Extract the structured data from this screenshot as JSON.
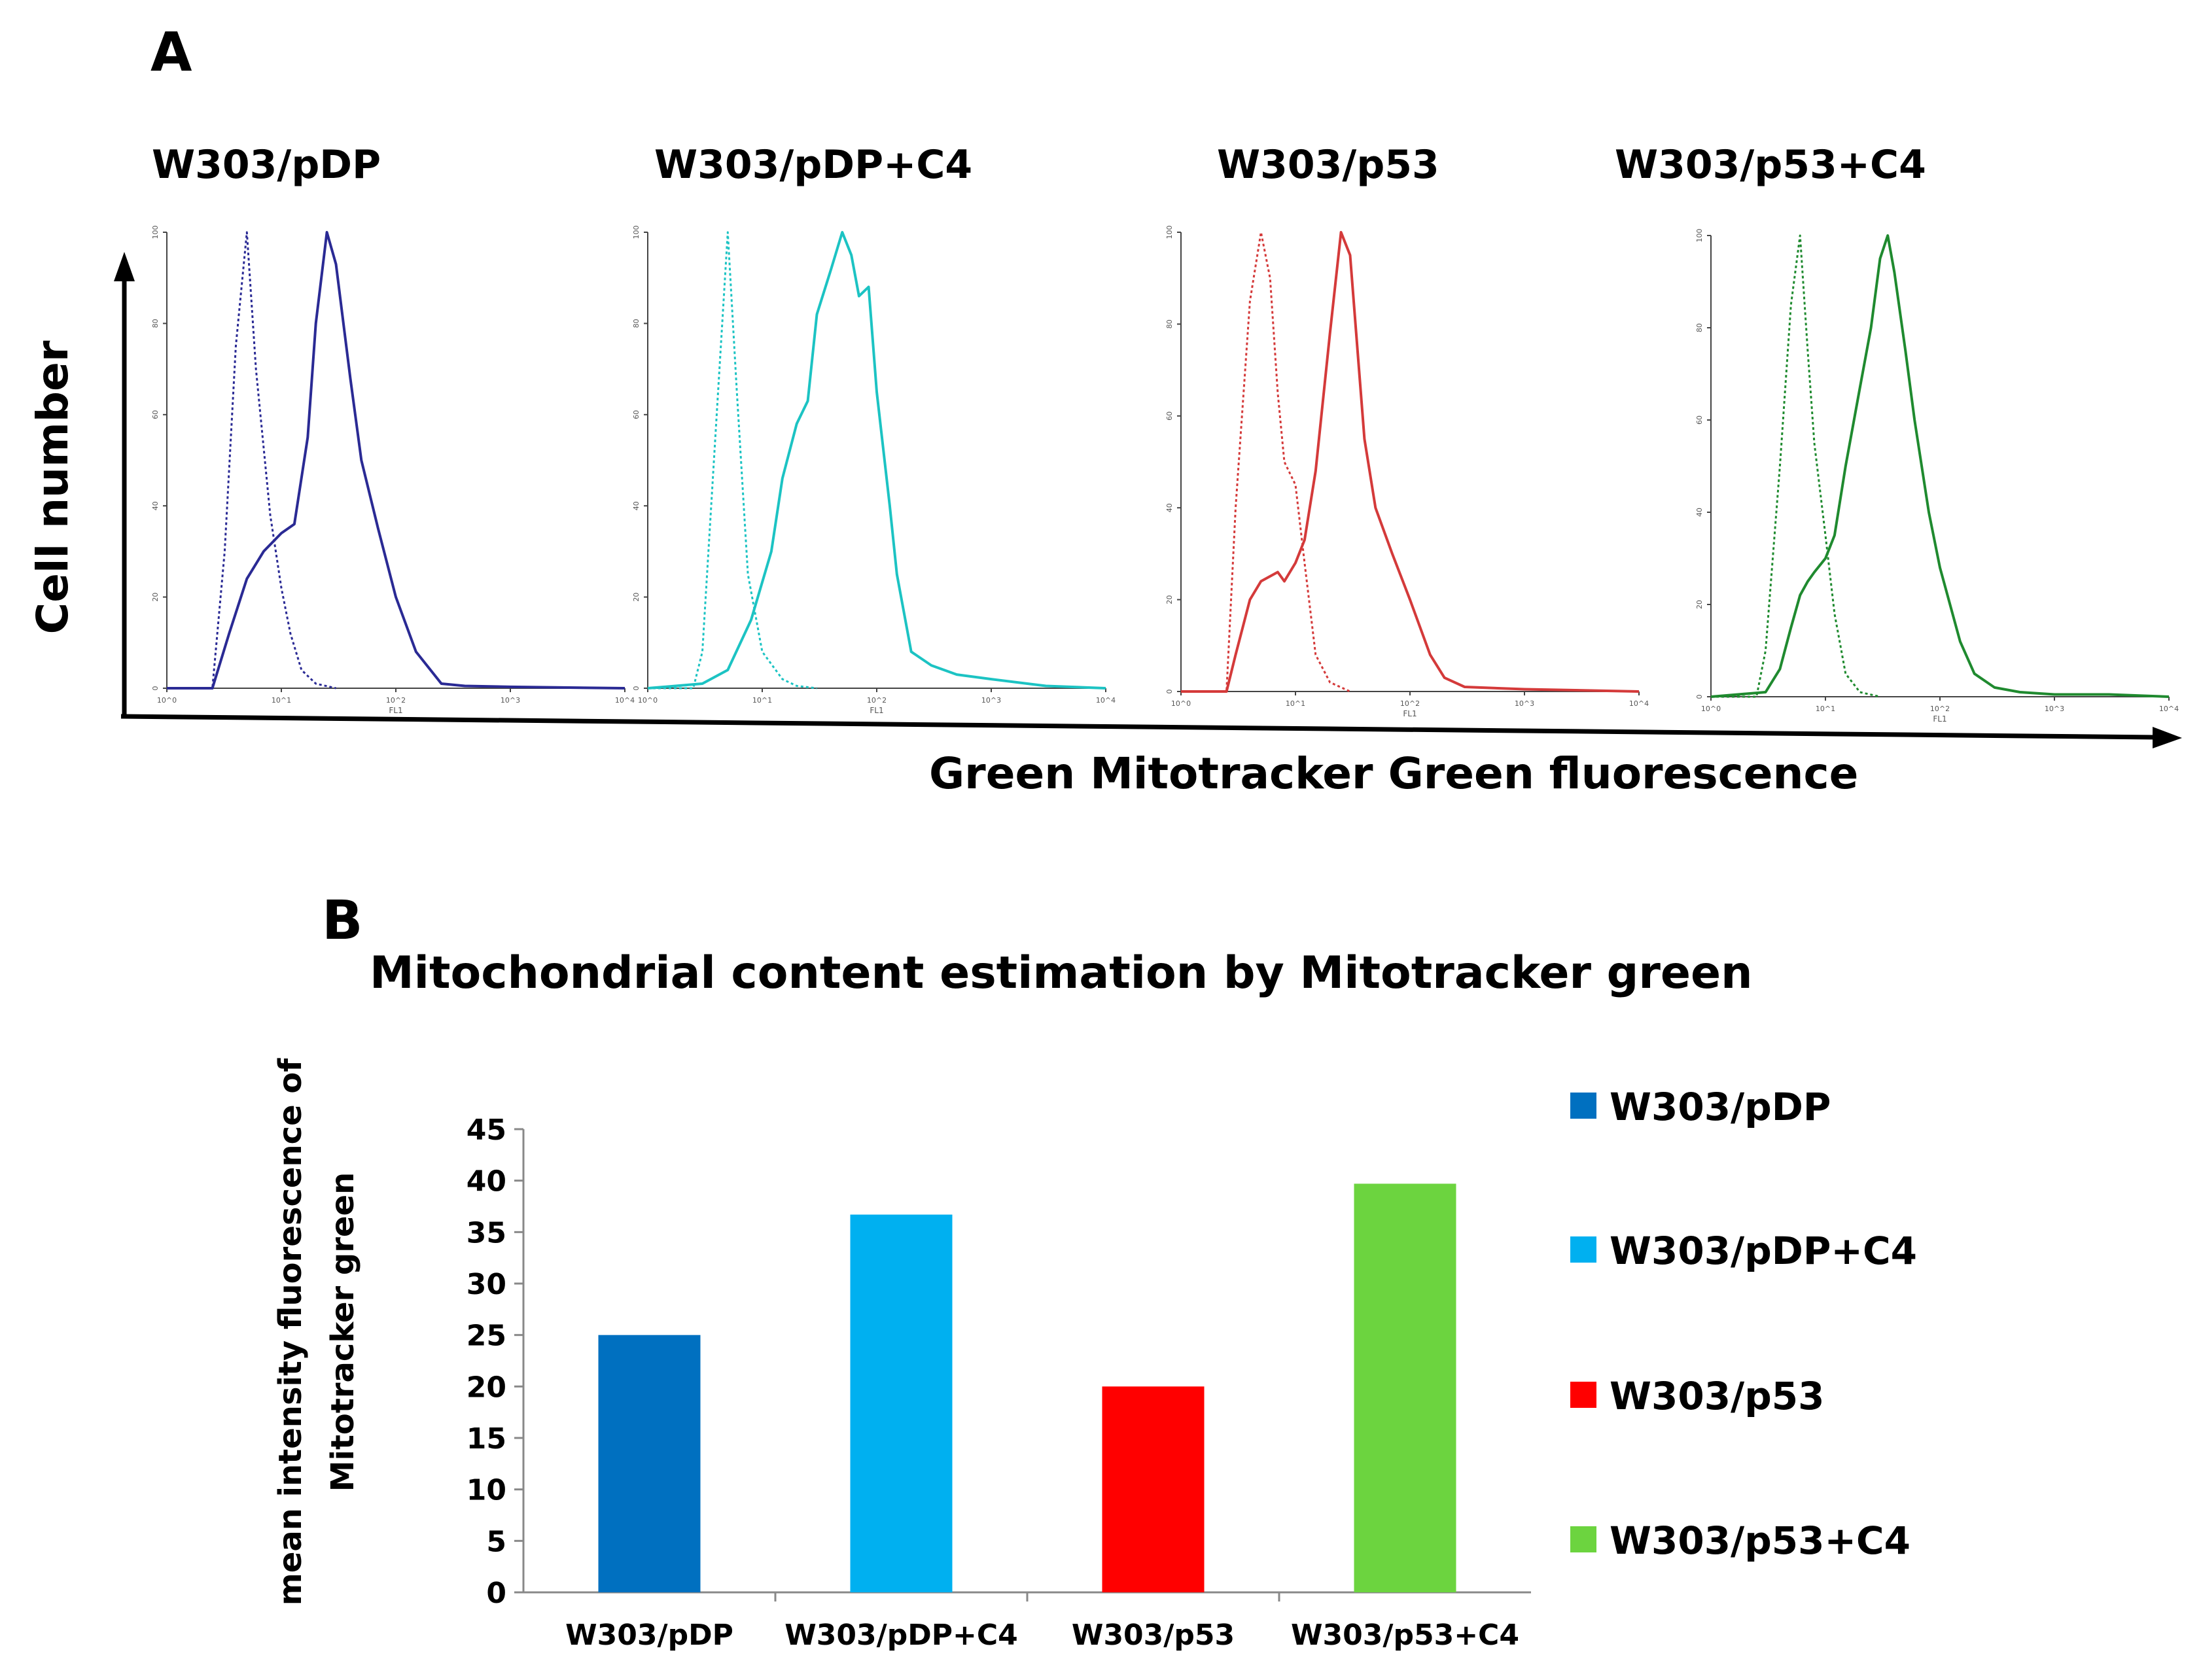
{
  "panel_a": {
    "label": "A",
    "titles": [
      "W303/pDP",
      "W303/pDP+C4",
      "W303/p53",
      "W303/p53+C4"
    ],
    "ylabel": "Cell number",
    "xlabel": "Green Mitotracker Green fluorescence",
    "colors": [
      "#2a2a94",
      "#1cc3c3",
      "#d43a3a",
      "#1f8a2f"
    ],
    "yticks": [
      "0",
      "20",
      "40",
      "60",
      "80",
      "100"
    ],
    "xtick_marks": [
      "10^0",
      "10^1",
      "10^2",
      "10^3",
      "10^4"
    ],
    "fl1_label": "FL1"
  },
  "panel_b": {
    "label": "B",
    "legend": [
      "W303/pDP",
      "W303/pDP+C4",
      "W303/p53",
      "W303/p53+C4"
    ]
  },
  "chart_data": [
    {
      "type": "line",
      "title": "W303/pDP",
      "xlabel": "Green Mitotracker Green fluorescence",
      "ylabel": "Cell number",
      "xscale": "log",
      "xlim": [
        1,
        10000
      ],
      "ylim": [
        0,
        100
      ],
      "series": [
        {
          "name": "control (dotted)",
          "x": [
            1,
            2.5,
            3.2,
            4,
            5,
            6,
            8,
            10,
            12,
            15,
            20,
            30
          ],
          "y": [
            0,
            0,
            30,
            75,
            100,
            70,
            38,
            22,
            12,
            4,
            1,
            0
          ]
        },
        {
          "name": "Mitotracker",
          "x": [
            1,
            2.5,
            3.5,
            5,
            7,
            10,
            13,
            17,
            20,
            25,
            30,
            40,
            50,
            70,
            100,
            150,
            250,
            400,
            1000,
            10000
          ],
          "y": [
            0,
            0,
            12,
            24,
            30,
            34,
            36,
            55,
            80,
            100,
            93,
            68,
            50,
            35,
            20,
            8,
            1,
            0.5,
            0.3,
            0
          ]
        }
      ]
    },
    {
      "type": "line",
      "title": "W303/pDP+C4",
      "xlabel": "Green Mitotracker Green fluorescence",
      "ylabel": "Cell number",
      "xscale": "log",
      "xlim": [
        1,
        10000
      ],
      "ylim": [
        0,
        100
      ],
      "series": [
        {
          "name": "control (dotted)",
          "x": [
            1,
            2.5,
            3,
            4,
            5,
            6,
            7.5,
            10,
            15,
            20,
            30
          ],
          "y": [
            0,
            0,
            8,
            60,
            100,
            65,
            25,
            8,
            2,
            0.5,
            0
          ]
        },
        {
          "name": "Mitotracker",
          "x": [
            1,
            3,
            5,
            8,
            12,
            15,
            20,
            25,
            30,
            40,
            50,
            60,
            70,
            85,
            100,
            130,
            150,
            200,
            300,
            500,
            1000,
            3000,
            10000
          ],
          "y": [
            0,
            1,
            4,
            15,
            30,
            46,
            58,
            63,
            82,
            92,
            100,
            95,
            86,
            88,
            65,
            40,
            25,
            8,
            5,
            3,
            2,
            0.5,
            0
          ]
        }
      ]
    },
    {
      "type": "line",
      "title": "W303/p53",
      "xlabel": "Green Mitotracker Green fluorescence",
      "ylabel": "Cell number",
      "xscale": "log",
      "xlim": [
        1,
        10000
      ],
      "ylim": [
        0,
        100
      ],
      "series": [
        {
          "name": "control (dotted)",
          "x": [
            1,
            2.5,
            3,
            4,
            5,
            6,
            7,
            8,
            10,
            12,
            15,
            20,
            30
          ],
          "y": [
            0,
            0,
            40,
            85,
            100,
            90,
            65,
            50,
            45,
            28,
            8,
            2,
            0
          ]
        },
        {
          "name": "Mitotracker",
          "x": [
            1,
            2.5,
            3,
            4,
            5,
            7,
            8,
            10,
            12,
            15,
            20,
            25,
            30,
            40,
            50,
            70,
            100,
            150,
            200,
            300,
            1000,
            10000
          ],
          "y": [
            0,
            0,
            8,
            20,
            24,
            26,
            24,
            28,
            33,
            48,
            78,
            100,
            95,
            55,
            40,
            30,
            20,
            8,
            3,
            1,
            0.5,
            0
          ]
        }
      ]
    },
    {
      "type": "line",
      "title": "W303/p53+C4",
      "xlabel": "Green Mitotracker Green fluorescence",
      "ylabel": "Cell number",
      "xscale": "log",
      "xlim": [
        1,
        10000
      ],
      "ylim": [
        0,
        100
      ],
      "series": [
        {
          "name": "control (dotted)",
          "x": [
            1,
            2.5,
            3,
            4,
            5,
            6,
            7,
            8,
            10,
            12,
            15,
            20,
            30
          ],
          "y": [
            0,
            0,
            10,
            50,
            85,
            100,
            75,
            55,
            35,
            18,
            5,
            1,
            0
          ]
        },
        {
          "name": "Mitotracker",
          "x": [
            1,
            3,
            4,
            5,
            6,
            7,
            8,
            10,
            12,
            15,
            20,
            25,
            30,
            35,
            40,
            50,
            60,
            80,
            100,
            150,
            200,
            300,
            500,
            1000,
            3000,
            10000
          ],
          "y": [
            0,
            1,
            6,
            15,
            22,
            25,
            27,
            30,
            35,
            50,
            67,
            80,
            95,
            100,
            92,
            75,
            60,
            40,
            28,
            12,
            5,
            2,
            1,
            0.5,
            0.5,
            0
          ]
        }
      ]
    },
    {
      "type": "bar",
      "title": "Mitochondrial content estimation by Mitotracker green",
      "xlabel": "",
      "ylabel": "mean intensity fluorescence of Mitotracker green",
      "ylabel_lines": [
        "mean intensity fluorescence of",
        "Mitotracker green"
      ],
      "categories": [
        "W303/pDP",
        "W303/pDP+C4",
        "W303/p53",
        "W303/p53+C4"
      ],
      "values": [
        25,
        36.7,
        20,
        39.7
      ],
      "colors": [
        "#0070c0",
        "#00b0f0",
        "#ff0000",
        "#6cd43f"
      ],
      "ylim": [
        0,
        45
      ],
      "yticks": [
        "0",
        "5",
        "10",
        "15",
        "20",
        "25",
        "30",
        "35",
        "40",
        "45"
      ],
      "legend_position": "right",
      "grid": false
    }
  ]
}
